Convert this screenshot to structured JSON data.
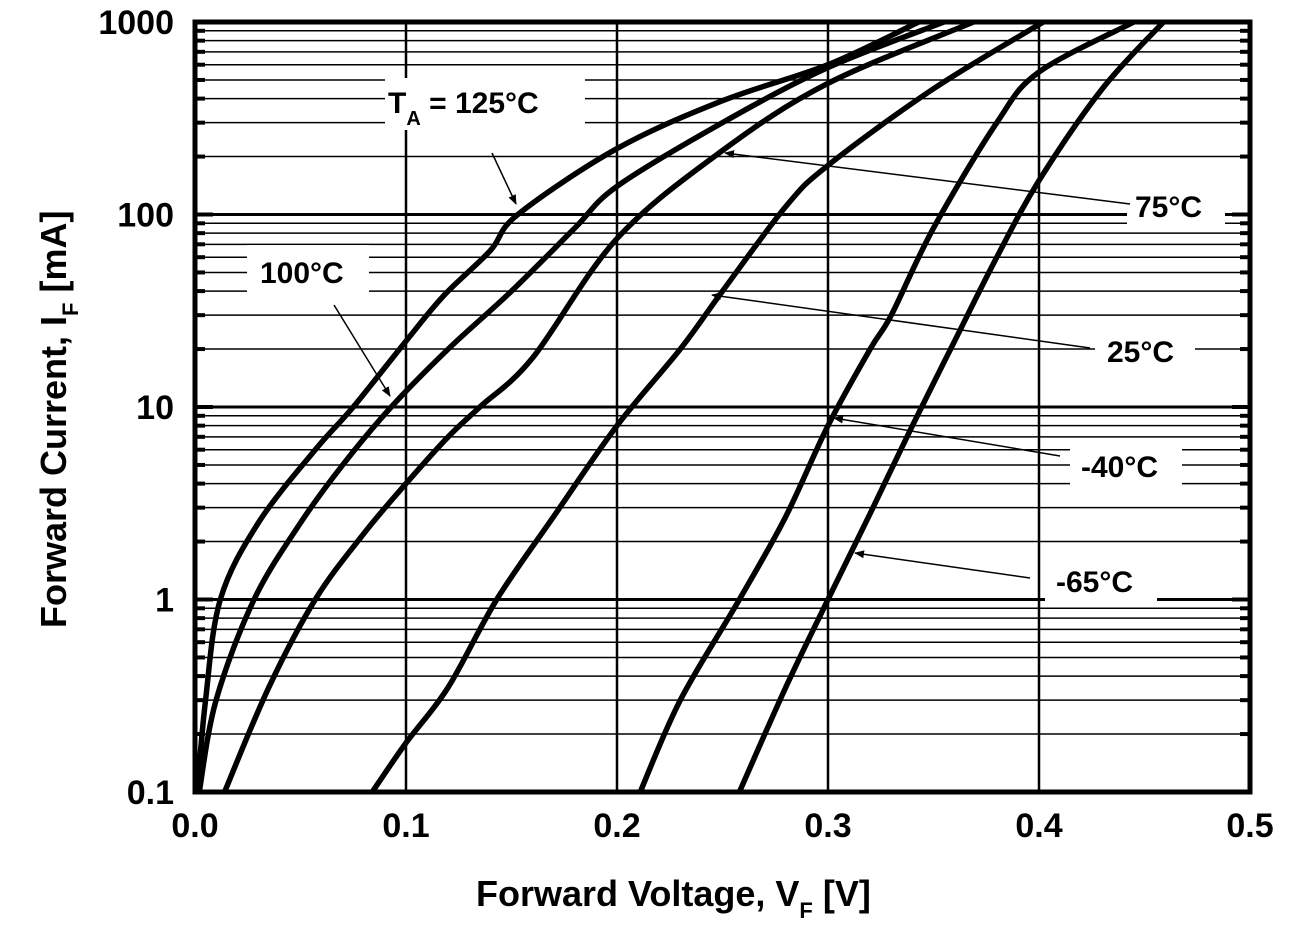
{
  "chart_data": {
    "type": "line",
    "title": "",
    "xlabel": "Forward Voltage, V_F [V]",
    "ylabel": "Forward Current, I_F [mA]",
    "xscale": "linear",
    "yscale": "log",
    "xlim": [
      0.0,
      0.5
    ],
    "ylim": [
      0.1,
      1000
    ],
    "grid": true,
    "legend": "inline annotations with arrows",
    "x_ticks": [
      "0.0",
      "0.1",
      "0.2",
      "0.3",
      "0.4",
      "0.5"
    ],
    "y_ticks": [
      "0.1",
      "1",
      "10",
      "100",
      "1000"
    ],
    "series": [
      {
        "name": "T_A = 125°C",
        "label": "T_A = 125°C",
        "points": [
          [
            0.001,
            0.1
          ],
          [
            0.005,
            0.3
          ],
          [
            0.012,
            1
          ],
          [
            0.03,
            2.5
          ],
          [
            0.057,
            6
          ],
          [
            0.075,
            10
          ],
          [
            0.1,
            22
          ],
          [
            0.118,
            38
          ],
          [
            0.14,
            65
          ],
          [
            0.153,
            100
          ],
          [
            0.2,
            220
          ],
          [
            0.25,
            390
          ],
          [
            0.3,
            600
          ],
          [
            0.343,
            1000
          ]
        ]
      },
      {
        "name": "100°C",
        "label": "100°C",
        "points": [
          [
            0.002,
            0.1
          ],
          [
            0.01,
            0.3
          ],
          [
            0.028,
            1
          ],
          [
            0.05,
            2.5
          ],
          [
            0.07,
            5
          ],
          [
            0.093,
            10
          ],
          [
            0.12,
            20
          ],
          [
            0.15,
            40
          ],
          [
            0.18,
            85
          ],
          [
            0.2,
            140
          ],
          [
            0.25,
            300
          ],
          [
            0.3,
            580
          ],
          [
            0.355,
            1000
          ]
        ]
      },
      {
        "name": "75°C",
        "label": "75°C",
        "points": [
          [
            0.014,
            0.1
          ],
          [
            0.035,
            0.35
          ],
          [
            0.057,
            1
          ],
          [
            0.08,
            2.2
          ],
          [
            0.1,
            4
          ],
          [
            0.12,
            7
          ],
          [
            0.135,
            10
          ],
          [
            0.16,
            18
          ],
          [
            0.2,
            75
          ],
          [
            0.25,
            215
          ],
          [
            0.3,
            480
          ],
          [
            0.369,
            1000
          ]
        ]
      },
      {
        "name": "25°C",
        "label": "25°C",
        "points": [
          [
            0.084,
            0.1
          ],
          [
            0.1,
            0.18
          ],
          [
            0.12,
            0.35
          ],
          [
            0.143,
            1
          ],
          [
            0.17,
            2.7
          ],
          [
            0.2,
            8
          ],
          [
            0.23,
            20
          ],
          [
            0.25,
            40
          ],
          [
            0.28,
            110
          ],
          [
            0.3,
            180
          ],
          [
            0.35,
            450
          ],
          [
            0.402,
            1000
          ]
        ]
      },
      {
        "name": "-40°C",
        "label": "-40°C",
        "points": [
          [
            0.211,
            0.1
          ],
          [
            0.23,
            0.3
          ],
          [
            0.258,
            1
          ],
          [
            0.28,
            2.7
          ],
          [
            0.3,
            8
          ],
          [
            0.32,
            20
          ],
          [
            0.33,
            30
          ],
          [
            0.35,
            85
          ],
          [
            0.38,
            300
          ],
          [
            0.4,
            550
          ],
          [
            0.445,
            1000
          ]
        ]
      },
      {
        "name": "-65°C",
        "label": "-65°C",
        "points": [
          [
            0.258,
            0.1
          ],
          [
            0.28,
            0.35
          ],
          [
            0.3,
            1
          ],
          [
            0.32,
            2.8
          ],
          [
            0.34,
            8
          ],
          [
            0.36,
            22
          ],
          [
            0.38,
            60
          ],
          [
            0.4,
            150
          ],
          [
            0.43,
            450
          ],
          [
            0.459,
            1000
          ]
        ]
      }
    ],
    "annotations": [
      {
        "text": "T_A = 125°C",
        "target_series": "T_A = 125°C"
      },
      {
        "text": "100°C",
        "target_series": "100°C"
      },
      {
        "text": "75°C",
        "target_series": "75°C"
      },
      {
        "text": "25°C",
        "target_series": "25°C"
      },
      {
        "text": "-40°C",
        "target_series": "-40°C"
      },
      {
        "text": "-65°C",
        "target_series": "-65°C"
      }
    ]
  },
  "labels": {
    "x_title_main": "Forward Voltage, V",
    "x_title_sub": "F",
    "x_title_end": " [V]",
    "y_title_main": "Forward Current, I",
    "y_title_sub": "F",
    "y_title_end": " [mA]",
    "ann_125_main": "T",
    "ann_125_sub": "A",
    "ann_125_end": " = 125°C",
    "ann_100": "100°C",
    "ann_75": "75°C",
    "ann_25": "25°C",
    "ann_m40": "-40°C",
    "ann_m65": "-65°C"
  },
  "colors": {
    "line": "#000000",
    "background": "#ffffff"
  }
}
